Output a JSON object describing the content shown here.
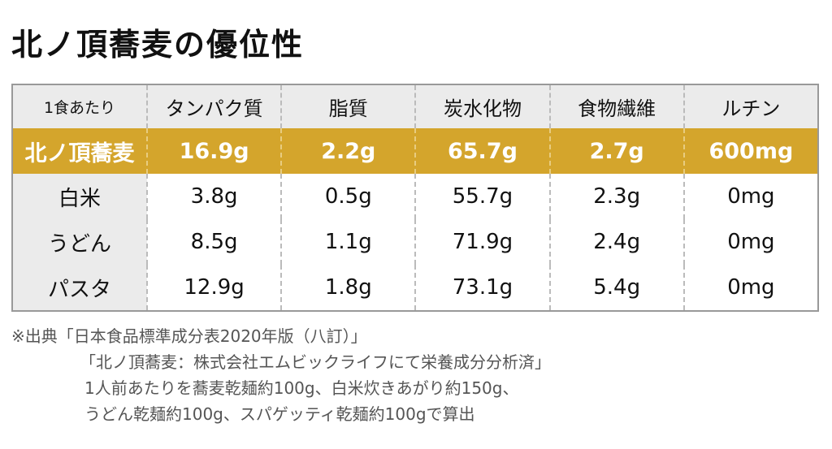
{
  "header": {
    "title": "北ノ頂蕎麦の優位性"
  },
  "table": {
    "header": [
      "1食あたり",
      "タンパク質",
      "脂質",
      "炭水化物",
      "食物繊維",
      "ルチン"
    ],
    "rows": [
      [
        "北ノ頂蕎麦",
        "16.9g",
        "2.2g",
        "65.7g",
        "2.7g",
        "600mg"
      ],
      [
        "白米",
        "3.8g",
        "0.5g",
        "55.7g",
        "2.3g",
        "0mg"
      ],
      [
        "うどん",
        "8.5g",
        "1.1g",
        "71.9g",
        "2.4g",
        "0mg"
      ],
      [
        "パスタ",
        "12.9g",
        "1.8g",
        "73.1g",
        "5.4g",
        "0mg"
      ]
    ]
  },
  "notes": [
    "※出典「日本食品標準成分表2020年版（八訂）」",
    "「北ノ頂蕎麦：株式会社エムビックライフにて栄養成分分析済」",
    "1人前あたりを蕎麦乾麺約100g、白米炊きあがり約150g、",
    "うどん乾麺約100g、スパゲッティ乾麺約100gで算出"
  ]
}
